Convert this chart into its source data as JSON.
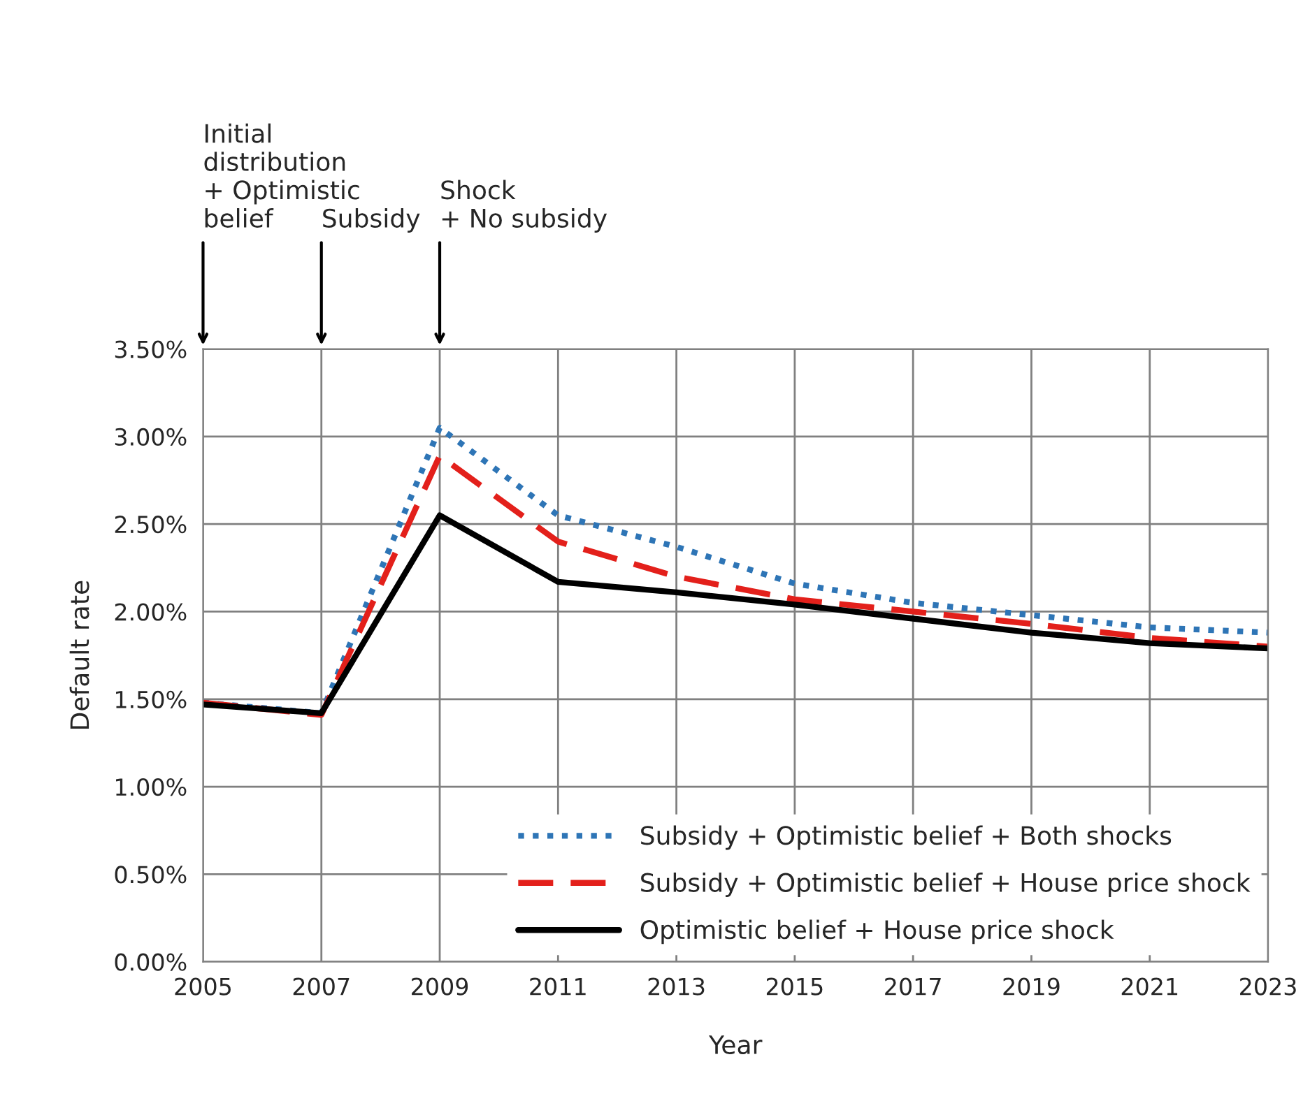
{
  "chart_data": {
    "type": "line",
    "xlabel": "Year",
    "ylabel": "Default rate",
    "x": [
      2005,
      2007,
      2009,
      2011,
      2013,
      2015,
      2017,
      2019,
      2021,
      2023
    ],
    "series": [
      {
        "name": "Subsidy + Optimistic belief + Both shocks",
        "color": "#2e75b6",
        "line_style": "dotted",
        "values": [
          1.48,
          1.42,
          3.05,
          2.55,
          2.37,
          2.16,
          2.05,
          1.98,
          1.91,
          1.88
        ]
      },
      {
        "name": "Subsidy + Optimistic belief + House price shock",
        "color": "#e3201b",
        "line_style": "dashed",
        "values": [
          1.48,
          1.41,
          2.89,
          2.4,
          2.2,
          2.07,
          2.0,
          1.93,
          1.85,
          1.8
        ]
      },
      {
        "name": "Optimistic belief + House price shock",
        "color": "#000000",
        "line_style": "solid",
        "values": [
          1.47,
          1.42,
          2.55,
          2.17,
          2.11,
          2.04,
          1.96,
          1.88,
          1.82,
          1.79
        ]
      }
    ],
    "xlim": [
      2005,
      2023
    ],
    "xticks": [
      2005,
      2007,
      2009,
      2011,
      2013,
      2015,
      2017,
      2019,
      2021,
      2023
    ],
    "ylim": [
      0,
      3.5
    ],
    "yticks": [
      {
        "value": 0,
        "label": "0.00%"
      },
      {
        "value": 0.5,
        "label": "0.50%"
      },
      {
        "value": 1.0,
        "label": "1.00%"
      },
      {
        "value": 1.5,
        "label": "1.50%"
      },
      {
        "value": 2.0,
        "label": "2.00%"
      },
      {
        "value": 2.5,
        "label": "2.50%"
      },
      {
        "value": 3.0,
        "label": "3.00%"
      },
      {
        "value": 3.5,
        "label": "3.50%"
      }
    ],
    "grid": true,
    "legend": "bottom right",
    "marker": "none",
    "annotations": [
      "Initial\ndistribution\n+ Optimistic\nbelief",
      "Subsidy",
      "Shock\n+ No subsidy"
    ]
  }
}
